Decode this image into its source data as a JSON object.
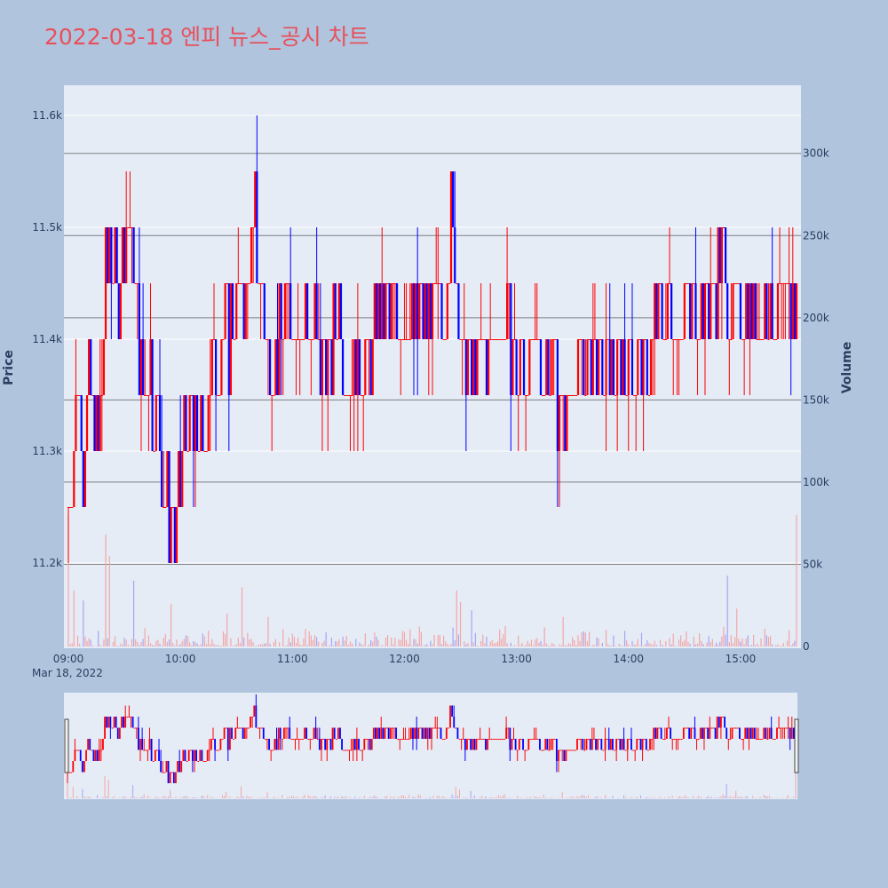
{
  "chart_data": {
    "type": "candlestick",
    "title": "2022-03-18 엔피 뉴스_공시 차트",
    "date_label": "Mar 18, 2022",
    "y_title": "Price",
    "y2_title": "Volume",
    "x_ticks": [
      "09:00",
      "10:00",
      "11:00",
      "12:00",
      "13:00",
      "14:00",
      "15:00"
    ],
    "y_ticks": [
      "11.2k",
      "11.3k",
      "11.4k",
      "11.5k",
      "11.6k"
    ],
    "y_tick_values": [
      11200,
      11300,
      11400,
      11500,
      11600
    ],
    "y2_ticks": [
      "0",
      "50k",
      "100k",
      "150k",
      "200k",
      "250k",
      "300k"
    ],
    "y2_tick_values": [
      0,
      50000,
      100000,
      150000,
      200000,
      250000,
      300000
    ],
    "price_range": [
      11125,
      11600
    ],
    "volume_range": [
      0,
      322000
    ],
    "time_range": [
      "09:00",
      "15:30"
    ],
    "colors": {
      "up": "#ff0000",
      "down": "#0000ff",
      "up_volume": "#f4a6a6",
      "down_volume": "#a6a6f4"
    },
    "price_path": [
      [
        "09:00",
        11250
      ],
      [
        "09:02",
        11300
      ],
      [
        "09:05",
        11350
      ],
      [
        "09:08",
        11300
      ],
      [
        "09:12",
        11350
      ],
      [
        "09:16",
        11300
      ],
      [
        "09:20",
        11450
      ],
      [
        "09:22",
        11500
      ],
      [
        "09:25",
        11450
      ],
      [
        "09:28",
        11450
      ],
      [
        "09:32",
        11500
      ],
      [
        "09:36",
        11450
      ],
      [
        "09:40",
        11350
      ],
      [
        "09:44",
        11370
      ],
      [
        "09:47",
        11320
      ],
      [
        "09:52",
        11270
      ],
      [
        "09:55",
        11240
      ],
      [
        "09:58",
        11210
      ],
      [
        "10:02",
        11320
      ],
      [
        "10:06",
        11320
      ],
      [
        "10:10",
        11320
      ],
      [
        "10:12",
        11270
      ],
      [
        "10:16",
        11380
      ],
      [
        "10:20",
        11380
      ],
      [
        "10:25",
        11400
      ],
      [
        "10:30",
        11430
      ],
      [
        "10:35",
        11450
      ],
      [
        "10:40",
        11500
      ],
      [
        "10:44",
        11450
      ],
      [
        "10:47",
        11380
      ],
      [
        "10:50",
        11380
      ],
      [
        "10:55",
        11420
      ],
      [
        "11:00",
        11420
      ],
      [
        "11:10",
        11420
      ],
      [
        "11:15",
        11380
      ],
      [
        "11:20",
        11380
      ],
      [
        "11:25",
        11420
      ],
      [
        "11:30",
        11370
      ],
      [
        "11:35",
        11370
      ],
      [
        "11:40",
        11370
      ],
      [
        "11:45",
        11420
      ],
      [
        "11:50",
        11420
      ],
      [
        "12:00",
        11420
      ],
      [
        "12:10",
        11420
      ],
      [
        "12:15",
        11420
      ],
      [
        "12:20",
        11420
      ],
      [
        "12:25",
        11500
      ],
      [
        "12:28",
        11450
      ],
      [
        "12:31",
        11370
      ],
      [
        "12:35",
        11370
      ],
      [
        "12:40",
        11370
      ],
      [
        "12:45",
        11370
      ],
      [
        "12:50",
        11420
      ],
      [
        "12:55",
        11400
      ],
      [
        "13:00",
        11370
      ],
      [
        "13:10",
        11380
      ],
      [
        "13:20",
        11380
      ],
      [
        "13:25",
        11330
      ],
      [
        "13:30",
        11370
      ],
      [
        "13:40",
        11380
      ],
      [
        "13:50",
        11380
      ],
      [
        "14:00",
        11380
      ],
      [
        "14:10",
        11380
      ],
      [
        "14:15",
        11420
      ],
      [
        "14:20",
        11420
      ],
      [
        "14:30",
        11420
      ],
      [
        "14:40",
        11420
      ],
      [
        "14:50",
        11470
      ],
      [
        "14:55",
        11420
      ],
      [
        "15:00",
        11420
      ],
      [
        "15:10",
        11420
      ],
      [
        "15:20",
        11420
      ],
      [
        "15:30",
        11420
      ]
    ],
    "volume_spikes": [
      [
        "09:00",
        80000
      ],
      [
        "09:03",
        34000
      ],
      [
        "09:08",
        28000
      ],
      [
        "09:20",
        68000
      ],
      [
        "09:22",
        55000
      ],
      [
        "09:35",
        40000
      ],
      [
        "09:55",
        26000
      ],
      [
        "10:25",
        20000
      ],
      [
        "10:33",
        36000
      ],
      [
        "10:47",
        18000
      ],
      [
        "12:28",
        34000
      ],
      [
        "12:30",
        27000
      ],
      [
        "12:36",
        22000
      ],
      [
        "13:25",
        18000
      ],
      [
        "14:53",
        43000
      ],
      [
        "14:58",
        23000
      ],
      [
        "15:30",
        80000
      ]
    ]
  }
}
